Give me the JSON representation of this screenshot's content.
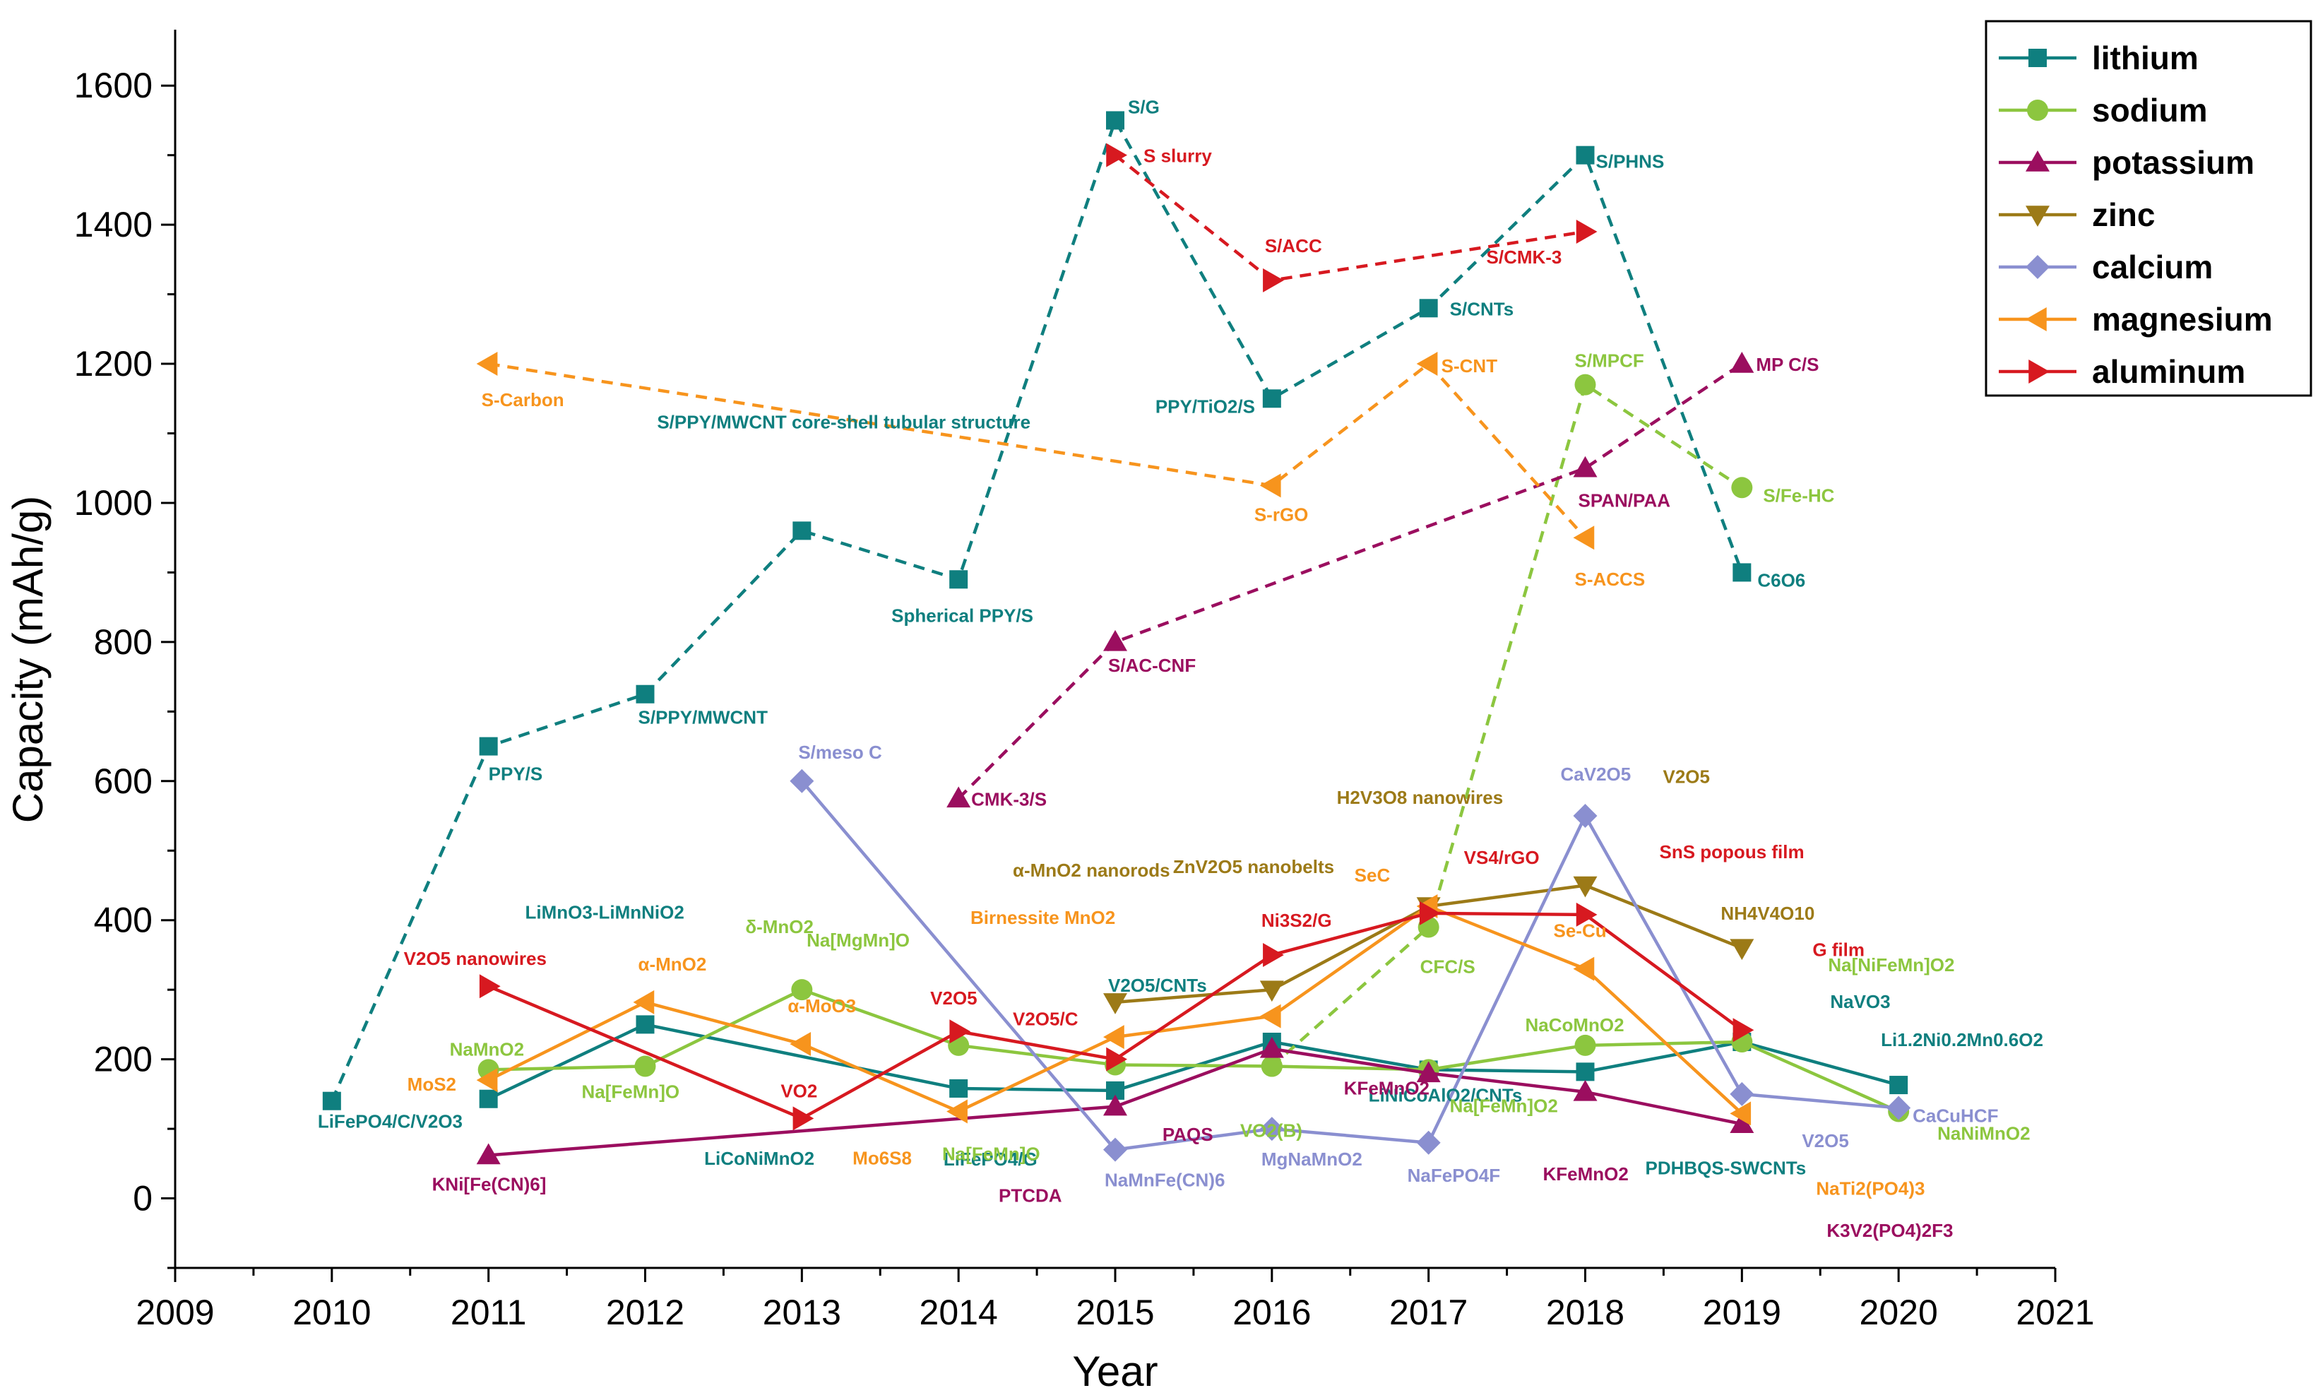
{
  "chart_data": {
    "type": "line",
    "title": "",
    "xlabel": "Year",
    "ylabel": "Capacity (mAh/g)",
    "xlim": [
      2009,
      2021
    ],
    "ylim": [
      -100,
      1650
    ],
    "x_ticks": [
      "2009",
      "2010",
      "2011",
      "2012",
      "2013",
      "2014",
      "2015",
      "2016",
      "2017",
      "2018",
      "2019",
      "2020",
      "2021"
    ],
    "y_ticks": [
      "0",
      "200",
      "400",
      "600",
      "800",
      "1000",
      "1200",
      "1400",
      "1600"
    ],
    "legend_position": "top-right",
    "series": [
      {
        "name": "lithium",
        "color": "#0f7f7f",
        "marker": "square",
        "groups": [
          {
            "style": "dashed",
            "points": [
              {
                "x": 2010,
                "y": 140,
                "label": "LiFePO4/C/V2O3"
              },
              {
                "x": 2011,
                "y": 650,
                "label": "PPY/S"
              },
              {
                "x": 2012,
                "y": 725,
                "label": "S/PPY/MWCNT"
              },
              {
                "x": 2013,
                "y": 960,
                "label": "S/PPY/MWCNT core-shell tubular structure"
              },
              {
                "x": 2014,
                "y": 890,
                "label": "Spherical PPY/S"
              },
              {
                "x": 2015,
                "y": 1550,
                "label": "S/G"
              },
              {
                "x": 2016,
                "y": 1150,
                "label": "PPY/TiO2/S"
              },
              {
                "x": 2017,
                "y": 1280,
                "label": "S/CNTs"
              },
              {
                "x": 2018,
                "y": 1500,
                "label": "S/PHNS"
              },
              {
                "x": 2019,
                "y": 900,
                "label": "C6O6"
              }
            ]
          },
          {
            "style": "solid",
            "points": [
              {
                "x": 2011,
                "y": 143,
                "label": ""
              },
              {
                "x": 2012,
                "y": 250,
                "label": "LiMnO3-LiMnNiO2"
              },
              {
                "x": 2014,
                "y": 158,
                "label": "LiCoNiMnO2"
              },
              {
                "x": 2015,
                "y": 155,
                "label": "V2O5/CNTs"
              },
              {
                "x": 2016,
                "y": 225,
                "label": "LiFePO4/G"
              },
              {
                "x": 2017,
                "y": 185,
                "label": "LiNiCoAlO2/CNTs"
              },
              {
                "x": 2018,
                "y": 182,
                "label": "PDHBQS-SWCNTs"
              },
              {
                "x": 2019,
                "y": 225,
                "label": "NaVO3"
              },
              {
                "x": 2020,
                "y": 163,
                "label": "Li1.2Ni0.2Mn0.6O2"
              }
            ]
          }
        ]
      },
      {
        "name": "sodium",
        "color": "#8cc63f",
        "marker": "circle",
        "groups": [
          {
            "style": "solid",
            "points": [
              {
                "x": 2011,
                "y": 185,
                "label": "NaMnO2"
              },
              {
                "x": 2012,
                "y": 190,
                "label": "Na[FeMn]O"
              },
              {
                "x": 2013,
                "y": 300,
                "label": "δ-MnO2"
              },
              {
                "x": 2014,
                "y": 220,
                "label": "Na[MgMn]O"
              },
              {
                "x": 2015,
                "y": 192,
                "label": "Na[FeMn]O"
              },
              {
                "x": 2016,
                "y": 190,
                "label": "VO2(B)"
              },
              {
                "x": 2017,
                "y": 185,
                "label": "Na[FeMn]O2"
              },
              {
                "x": 2018,
                "y": 220,
                "label": "NaCoMnO2"
              },
              {
                "x": 2019,
                "y": 225,
                "label": "Na[NiFeMn]O2"
              },
              {
                "x": 2020,
                "y": 125,
                "label": "NaNiMnO2"
              }
            ]
          },
          {
            "style": "dashed",
            "points": [
              {
                "x": 2016,
                "y": 190,
                "label": ""
              },
              {
                "x": 2017,
                "y": 390,
                "label": "CFC/S"
              },
              {
                "x": 2018,
                "y": 1170,
                "label": "S/MPCF"
              },
              {
                "x": 2019,
                "y": 1022,
                "label": "S/Fe-HC"
              }
            ]
          }
        ]
      },
      {
        "name": "potassium",
        "color": "#9b0e5f",
        "marker": "triangle-up",
        "groups": [
          {
            "style": "solid",
            "points": [
              {
                "x": 2011,
                "y": 62,
                "label": "KNi[Fe(CN)6]"
              },
              {
                "x": 2015,
                "y": 132,
                "label": "PTCDA"
              },
              {
                "x": 2016,
                "y": 215,
                "label": "PAQS"
              },
              {
                "x": 2017,
                "y": 180,
                "label": "KFeMnO2"
              },
              {
                "x": 2018,
                "y": 153,
                "label": "KFeMnO2"
              },
              {
                "x": 2019,
                "y": 107,
                "label": "K3V2(PO4)2F3"
              }
            ]
          },
          {
            "style": "dashed",
            "points": [
              {
                "x": 2014,
                "y": 575,
                "label": "CMK-3/S"
              },
              {
                "x": 2015,
                "y": 800,
                "label": "S/AC-CNF"
              },
              {
                "x": 2018,
                "y": 1050,
                "label": "SPAN/PAA"
              },
              {
                "x": 2019,
                "y": 1200,
                "label": "MP C/S"
              }
            ]
          }
        ]
      },
      {
        "name": "zinc",
        "color": "#9c7a17",
        "marker": "triangle-down",
        "groups": [
          {
            "style": "solid",
            "points": [
              {
                "x": 2015,
                "y": 282,
                "label": "α-MnO2 nanorods"
              },
              {
                "x": 2016,
                "y": 300,
                "label": "ZnV2O5 nanobelts"
              },
              {
                "x": 2017,
                "y": 420,
                "label": "H2V3O8 nanowires"
              },
              {
                "x": 2018,
                "y": 450,
                "label": "V2O5"
              },
              {
                "x": 2019,
                "y": 360,
                "label": "NH4V4O10"
              }
            ]
          }
        ]
      },
      {
        "name": "calcium",
        "color": "#8a8fd0",
        "marker": "diamond",
        "groups": [
          {
            "style": "solid",
            "points": [
              {
                "x": 2013,
                "y": 600,
                "label": "S/meso C"
              },
              {
                "x": 2015,
                "y": 70,
                "label": "NaMnFe(CN)6"
              },
              {
                "x": 2016,
                "y": 100,
                "label": "MgNaMnO2"
              },
              {
                "x": 2017,
                "y": 80,
                "label": "NaFePO4F"
              },
              {
                "x": 2018,
                "y": 550,
                "label": "CaV2O5"
              },
              {
                "x": 2019,
                "y": 150,
                "label": "V2O5"
              },
              {
                "x": 2020,
                "y": 130,
                "label": "CaCuHCF"
              }
            ]
          }
        ]
      },
      {
        "name": "magnesium",
        "color": "#f7941d",
        "marker": "triangle-left",
        "groups": [
          {
            "style": "solid",
            "points": [
              {
                "x": 2011,
                "y": 170,
                "label": "MoS2"
              },
              {
                "x": 2012,
                "y": 282,
                "label": "α-MnO2"
              },
              {
                "x": 2013,
                "y": 222,
                "label": "α-MoO3"
              },
              {
                "x": 2014,
                "y": 125,
                "label": "Mo6S8"
              },
              {
                "x": 2015,
                "y": 232,
                "label": "Birnessite MnO2"
              },
              {
                "x": 2016,
                "y": 262,
                "label": ""
              },
              {
                "x": 2017,
                "y": 420,
                "label": "SeC"
              },
              {
                "x": 2018,
                "y": 330,
                "label": "Se-Cu"
              },
              {
                "x": 2019,
                "y": 122,
                "label": "NaTi2(PO4)3"
              }
            ]
          },
          {
            "style": "dashed",
            "points": [
              {
                "x": 2011,
                "y": 1200,
                "label": "S-Carbon"
              },
              {
                "x": 2016,
                "y": 1025,
                "label": "S-rGO"
              },
              {
                "x": 2017,
                "y": 1200,
                "label": "S-CNT"
              },
              {
                "x": 2018,
                "y": 950,
                "label": "S-ACCS"
              }
            ]
          }
        ]
      },
      {
        "name": "aluminum",
        "color": "#d71920",
        "marker": "triangle-right",
        "groups": [
          {
            "style": "solid",
            "points": [
              {
                "x": 2011,
                "y": 305,
                "label": "V2O5 nanowires"
              },
              {
                "x": 2013,
                "y": 115,
                "label": "VO2"
              },
              {
                "x": 2014,
                "y": 240,
                "label": "V2O5"
              },
              {
                "x": 2015,
                "y": 200,
                "label": "V2O5/C"
              },
              {
                "x": 2016,
                "y": 350,
                "label": "Ni3S2/G"
              },
              {
                "x": 2017,
                "y": 410,
                "label": "VS4/rGO"
              },
              {
                "x": 2018,
                "y": 408,
                "label": "SnS popous film"
              },
              {
                "x": 2019,
                "y": 242,
                "label": "G film"
              }
            ]
          },
          {
            "style": "dashed",
            "points": [
              {
                "x": 2015,
                "y": 1500,
                "label": "S slurry"
              },
              {
                "x": 2016,
                "y": 1320,
                "label": "S/ACC"
              },
              {
                "x": 2018,
                "y": 1390,
                "label": "S/CMK-3"
              }
            ]
          }
        ]
      }
    ]
  }
}
